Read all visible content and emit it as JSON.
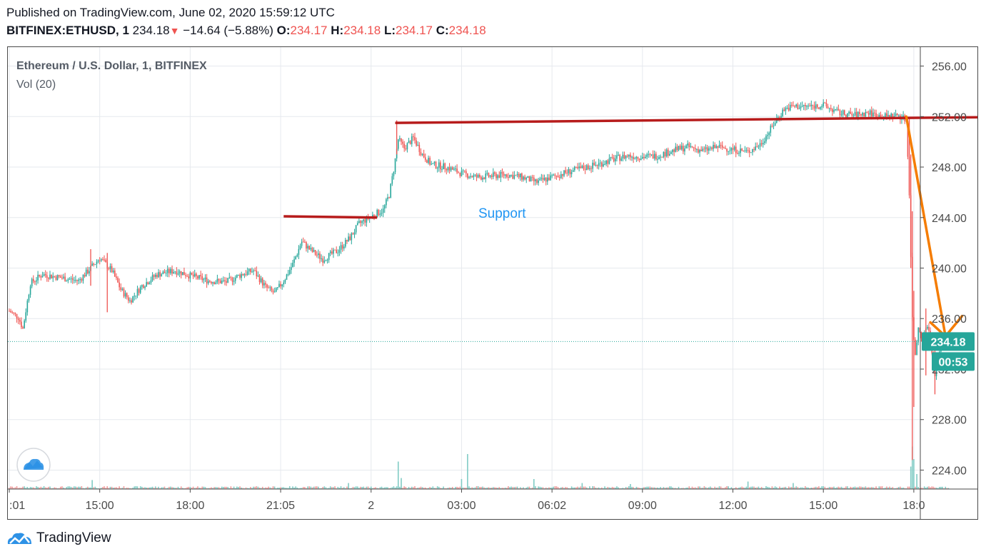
{
  "header": {
    "published": "Published on TradingView.com, June 02, 2020 15:59:12 UTC",
    "symbol": "BITFINEX:ETHUSD, 1",
    "last": "234.18",
    "change_arrow": "▼",
    "change": "−14.64 (−5.88%)",
    "o_label": "O:",
    "o_value": "234.17",
    "h_label": "H:",
    "h_value": "234.18",
    "l_label": "L:",
    "l_value": "234.17",
    "c_label": "C:",
    "c_value": "234.18"
  },
  "legend": {
    "title": "Ethereum / U.S. Dollar, 1, BITFINEX",
    "volume": "Vol (20)"
  },
  "annotation": {
    "support_text": "Support"
  },
  "price_badge": {
    "price": "234.18",
    "countdown": "00:53"
  },
  "footer": {
    "brand": "TradingView"
  },
  "colors": {
    "up": "#26a69a",
    "down": "#ef5350",
    "trendline": "#b71c1c",
    "arrow": "#f57c00",
    "support_text": "#2196f3",
    "grid": "#e6e9ee"
  },
  "chart_data": {
    "type": "candlestick",
    "interval": "1 minute",
    "x_ticks": [
      ":01",
      "15:00",
      "18:00",
      "21:05",
      "2",
      "03:00",
      "06:02",
      "09:00",
      "12:00",
      "15:00",
      "18:0"
    ],
    "y_ticks": [
      256.0,
      252.0,
      248.0,
      244.0,
      240.0,
      236.0,
      232.0,
      228.0,
      224.0
    ],
    "ylim": [
      222.5,
      257.5
    ],
    "last_price": 234.18,
    "price_path": [
      {
        "x": 0.0,
        "y": 236.6
      },
      {
        "x": 0.3,
        "y": 236.1
      },
      {
        "x": 0.45,
        "y": 235.2
      },
      {
        "x": 0.7,
        "y": 238.8
      },
      {
        "x": 1.1,
        "y": 239.5
      },
      {
        "x": 1.8,
        "y": 239.2
      },
      {
        "x": 2.3,
        "y": 239.0
      },
      {
        "x": 2.7,
        "y": 240.0
      },
      {
        "x": 3.0,
        "y": 240.8
      },
      {
        "x": 3.4,
        "y": 239.8
      },
      {
        "x": 3.7,
        "y": 238.3
      },
      {
        "x": 4.0,
        "y": 237.4
      },
      {
        "x": 4.4,
        "y": 238.6
      },
      {
        "x": 4.9,
        "y": 239.5
      },
      {
        "x": 5.5,
        "y": 239.8
      },
      {
        "x": 6.0,
        "y": 239.4
      },
      {
        "x": 6.6,
        "y": 239.0
      },
      {
        "x": 7.2,
        "y": 238.9
      },
      {
        "x": 7.7,
        "y": 239.5
      },
      {
        "x": 8.1,
        "y": 239.8
      },
      {
        "x": 8.5,
        "y": 238.5
      },
      {
        "x": 8.8,
        "y": 238.0
      },
      {
        "x": 9.1,
        "y": 239.0
      },
      {
        "x": 9.4,
        "y": 240.3
      },
      {
        "x": 9.7,
        "y": 242.1
      },
      {
        "x": 10.0,
        "y": 241.4
      },
      {
        "x": 10.4,
        "y": 240.7
      },
      {
        "x": 10.9,
        "y": 241.4
      },
      {
        "x": 11.3,
        "y": 242.4
      },
      {
        "x": 11.6,
        "y": 243.5
      },
      {
        "x": 12.0,
        "y": 244.1
      },
      {
        "x": 12.4,
        "y": 244.6
      },
      {
        "x": 12.6,
        "y": 245.8
      },
      {
        "x": 12.75,
        "y": 247.8
      },
      {
        "x": 12.9,
        "y": 250.2
      },
      {
        "x": 13.1,
        "y": 249.5
      },
      {
        "x": 13.4,
        "y": 250.3
      },
      {
        "x": 13.7,
        "y": 249.0
      },
      {
        "x": 14.0,
        "y": 248.2
      },
      {
        "x": 14.5,
        "y": 248.0
      },
      {
        "x": 15.0,
        "y": 247.5
      },
      {
        "x": 15.5,
        "y": 247.2
      },
      {
        "x": 16.0,
        "y": 247.3
      },
      {
        "x": 16.5,
        "y": 247.4
      },
      {
        "x": 17.0,
        "y": 247.2
      },
      {
        "x": 17.5,
        "y": 246.8
      },
      {
        "x": 18.0,
        "y": 247.2
      },
      {
        "x": 18.5,
        "y": 247.6
      },
      {
        "x": 19.0,
        "y": 247.9
      },
      {
        "x": 19.5,
        "y": 248.2
      },
      {
        "x": 20.0,
        "y": 248.6
      },
      {
        "x": 20.5,
        "y": 248.9
      },
      {
        "x": 21.0,
        "y": 248.8
      },
      {
        "x": 21.5,
        "y": 248.9
      },
      {
        "x": 22.0,
        "y": 249.3
      },
      {
        "x": 22.5,
        "y": 249.6
      },
      {
        "x": 23.0,
        "y": 249.3
      },
      {
        "x": 23.5,
        "y": 249.6
      },
      {
        "x": 24.0,
        "y": 249.4
      },
      {
        "x": 24.5,
        "y": 249.2
      },
      {
        "x": 24.9,
        "y": 249.8
      },
      {
        "x": 25.2,
        "y": 250.8
      },
      {
        "x": 25.4,
        "y": 251.6
      },
      {
        "x": 25.7,
        "y": 252.6
      },
      {
        "x": 26.0,
        "y": 252.8
      },
      {
        "x": 26.5,
        "y": 252.8
      },
      {
        "x": 27.0,
        "y": 252.9
      },
      {
        "x": 27.5,
        "y": 252.3
      },
      {
        "x": 28.0,
        "y": 252.1
      },
      {
        "x": 28.5,
        "y": 252.3
      },
      {
        "x": 29.0,
        "y": 252.0
      },
      {
        "x": 29.5,
        "y": 252.1
      },
      {
        "x": 29.75,
        "y": 251.7
      },
      {
        "x": 29.85,
        "y": 246.0
      },
      {
        "x": 29.95,
        "y": 236.0
      },
      {
        "x": 30.05,
        "y": 233.0
      },
      {
        "x": 30.15,
        "y": 235.4
      },
      {
        "x": 30.3,
        "y": 234.3
      },
      {
        "x": 30.45,
        "y": 235.6
      },
      {
        "x": 30.6,
        "y": 233.5
      },
      {
        "x": 30.7,
        "y": 231.5
      },
      {
        "x": 30.85,
        "y": 233.6
      },
      {
        "x": 31.0,
        "y": 233.9
      },
      {
        "x": 31.2,
        "y": 234.18
      }
    ],
    "wicks": [
      {
        "x": 12.85,
        "low": 249.0,
        "high": 251.7
      },
      {
        "x": 29.85,
        "low": 246.0,
        "high": 251.9
      },
      {
        "x": 29.9,
        "low": 240.0,
        "high": 249.0
      },
      {
        "x": 29.95,
        "low": 224.8,
        "high": 244.5
      },
      {
        "x": 30.0,
        "low": 229.0,
        "high": 238.2
      },
      {
        "x": 30.4,
        "low": 231.5,
        "high": 236.8
      },
      {
        "x": 30.7,
        "low": 230.0,
        "high": 234.5
      },
      {
        "x": 3.25,
        "low": 236.5,
        "high": 241.2
      },
      {
        "x": 2.7,
        "low": 238.6,
        "high": 241.5
      }
    ],
    "volume_spikes": [
      {
        "x": 12.9,
        "v": 0.55
      },
      {
        "x": 13.0,
        "v": 0.22
      },
      {
        "x": 15.2,
        "v": 0.7
      },
      {
        "x": 15.0,
        "v": 0.2
      },
      {
        "x": 17.4,
        "v": 0.2
      },
      {
        "x": 29.9,
        "v": 0.45
      },
      {
        "x": 29.95,
        "v": 0.85
      },
      {
        "x": 30.0,
        "v": 0.6
      },
      {
        "x": 30.1,
        "v": 0.3
      },
      {
        "x": 24.5,
        "v": 0.15
      },
      {
        "x": 2.75,
        "v": 0.18
      },
      {
        "x": 11.25,
        "v": 0.12
      },
      {
        "x": 19.0,
        "v": 0.12
      },
      {
        "x": 20.6,
        "v": 0.1
      },
      {
        "x": 26.0,
        "v": 0.12
      }
    ],
    "trendlines": [
      {
        "name": "resistance",
        "points": [
          {
            "x": 12.8,
            "y": 251.5
          },
          {
            "x": 30.1,
            "y": 251.9
          }
        ],
        "extend_to_x": 33.8
      },
      {
        "name": "support",
        "points": [
          {
            "x": 9.1,
            "y": 244.1
          },
          {
            "x": 12.2,
            "y": 244.0
          }
        ]
      }
    ],
    "arrows": [
      {
        "points": [
          {
            "x": 29.75,
            "y": 252.0
          },
          {
            "x": 31.05,
            "y": 234.6
          }
        ]
      },
      {
        "points": [
          {
            "x": 30.55,
            "y": 235.7
          },
          {
            "x": 31.05,
            "y": 234.6
          },
          {
            "x": 31.6,
            "y": 236.2
          }
        ]
      }
    ],
    "grid": true,
    "legend": "top-left"
  }
}
